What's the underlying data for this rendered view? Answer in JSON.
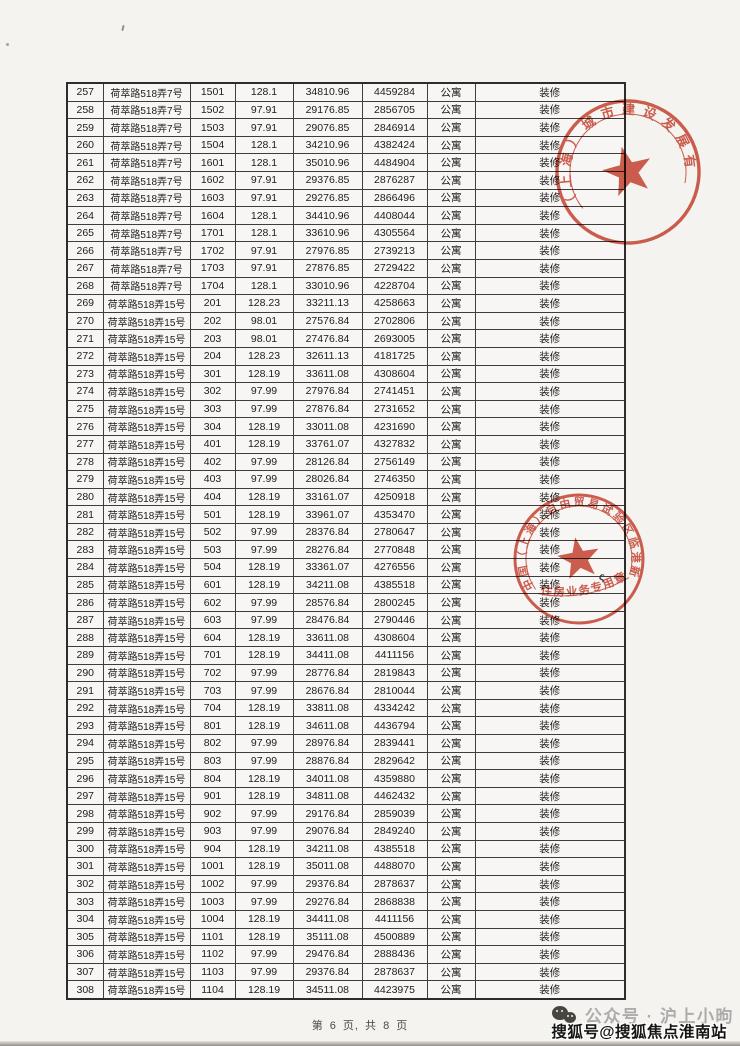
{
  "page": {
    "footer_text": "第 6 页, 共 8 页"
  },
  "table": {
    "rows": [
      [
        "257",
        "荷萃路518弄7号",
        "1501",
        "128.1",
        "34810.96",
        "4459284",
        "公寓",
        "装修"
      ],
      [
        "258",
        "荷萃路518弄7号",
        "1502",
        "97.91",
        "29176.85",
        "2856705",
        "公寓",
        "装修"
      ],
      [
        "259",
        "荷萃路518弄7号",
        "1503",
        "97.91",
        "29076.85",
        "2846914",
        "公寓",
        "装修"
      ],
      [
        "260",
        "荷萃路518弄7号",
        "1504",
        "128.1",
        "34210.96",
        "4382424",
        "公寓",
        "装修"
      ],
      [
        "261",
        "荷萃路518弄7号",
        "1601",
        "128.1",
        "35010.96",
        "4484904",
        "公寓",
        "装修"
      ],
      [
        "262",
        "荷萃路518弄7号",
        "1602",
        "97.91",
        "29376.85",
        "2876287",
        "公寓",
        "装修"
      ],
      [
        "263",
        "荷萃路518弄7号",
        "1603",
        "97.91",
        "29276.85",
        "2866496",
        "公寓",
        "装修"
      ],
      [
        "264",
        "荷萃路518弄7号",
        "1604",
        "128.1",
        "34410.96",
        "4408044",
        "公寓",
        "装修"
      ],
      [
        "265",
        "荷萃路518弄7号",
        "1701",
        "128.1",
        "33610.96",
        "4305564",
        "公寓",
        "装修"
      ],
      [
        "266",
        "荷萃路518弄7号",
        "1702",
        "97.91",
        "27976.85",
        "2739213",
        "公寓",
        "装修"
      ],
      [
        "267",
        "荷萃路518弄7号",
        "1703",
        "97.91",
        "27876.85",
        "2729422",
        "公寓",
        "装修"
      ],
      [
        "268",
        "荷萃路518弄7号",
        "1704",
        "128.1",
        "33010.96",
        "4228704",
        "公寓",
        "装修"
      ],
      [
        "269",
        "荷萃路518弄15号",
        "201",
        "128.23",
        "33211.13",
        "4258663",
        "公寓",
        "装修"
      ],
      [
        "270",
        "荷萃路518弄15号",
        "202",
        "98.01",
        "27576.84",
        "2702806",
        "公寓",
        "装修"
      ],
      [
        "271",
        "荷萃路518弄15号",
        "203",
        "98.01",
        "27476.84",
        "2693005",
        "公寓",
        "装修"
      ],
      [
        "272",
        "荷萃路518弄15号",
        "204",
        "128.23",
        "32611.13",
        "4181725",
        "公寓",
        "装修"
      ],
      [
        "273",
        "荷萃路518弄15号",
        "301",
        "128.19",
        "33611.08",
        "4308604",
        "公寓",
        "装修"
      ],
      [
        "274",
        "荷萃路518弄15号",
        "302",
        "97.99",
        "27976.84",
        "2741451",
        "公寓",
        "装修"
      ],
      [
        "275",
        "荷萃路518弄15号",
        "303",
        "97.99",
        "27876.84",
        "2731652",
        "公寓",
        "装修"
      ],
      [
        "276",
        "荷萃路518弄15号",
        "304",
        "128.19",
        "33011.08",
        "4231690",
        "公寓",
        "装修"
      ],
      [
        "277",
        "荷萃路518弄15号",
        "401",
        "128.19",
        "33761.07",
        "4327832",
        "公寓",
        "装修"
      ],
      [
        "278",
        "荷萃路518弄15号",
        "402",
        "97.99",
        "28126.84",
        "2756149",
        "公寓",
        "装修"
      ],
      [
        "279",
        "荷萃路518弄15号",
        "403",
        "97.99",
        "28026.84",
        "2746350",
        "公寓",
        "装修"
      ],
      [
        "280",
        "荷萃路518弄15号",
        "404",
        "128.19",
        "33161.07",
        "4250918",
        "公寓",
        "装修"
      ],
      [
        "281",
        "荷萃路518弄15号",
        "501",
        "128.19",
        "33961.07",
        "4353470",
        "公寓",
        "装修"
      ],
      [
        "282",
        "荷萃路518弄15号",
        "502",
        "97.99",
        "28376.84",
        "2780647",
        "公寓",
        "装修"
      ],
      [
        "283",
        "荷萃路518弄15号",
        "503",
        "97.99",
        "28276.84",
        "2770848",
        "公寓",
        "装修"
      ],
      [
        "284",
        "荷萃路518弄15号",
        "504",
        "128.19",
        "33361.07",
        "4276556",
        "公寓",
        "装修"
      ],
      [
        "285",
        "荷萃路518弄15号",
        "601",
        "128.19",
        "34211.08",
        "4385518",
        "公寓",
        "装修"
      ],
      [
        "286",
        "荷萃路518弄15号",
        "602",
        "97.99",
        "28576.84",
        "2800245",
        "公寓",
        "装修"
      ],
      [
        "287",
        "荷萃路518弄15号",
        "603",
        "97.99",
        "28476.84",
        "2790446",
        "公寓",
        "装修"
      ],
      [
        "288",
        "荷萃路518弄15号",
        "604",
        "128.19",
        "33611.08",
        "4308604",
        "公寓",
        "装修"
      ],
      [
        "289",
        "荷萃路518弄15号",
        "701",
        "128.19",
        "34411.08",
        "4411156",
        "公寓",
        "装修"
      ],
      [
        "290",
        "荷萃路518弄15号",
        "702",
        "97.99",
        "28776.84",
        "2819843",
        "公寓",
        "装修"
      ],
      [
        "291",
        "荷萃路518弄15号",
        "703",
        "97.99",
        "28676.84",
        "2810044",
        "公寓",
        "装修"
      ],
      [
        "292",
        "荷萃路518弄15号",
        "704",
        "128.19",
        "33811.08",
        "4334242",
        "公寓",
        "装修"
      ],
      [
        "293",
        "荷萃路518弄15号",
        "801",
        "128.19",
        "34611.08",
        "4436794",
        "公寓",
        "装修"
      ],
      [
        "294",
        "荷萃路518弄15号",
        "802",
        "97.99",
        "28976.84",
        "2839441",
        "公寓",
        "装修"
      ],
      [
        "295",
        "荷萃路518弄15号",
        "803",
        "97.99",
        "28876.84",
        "2829642",
        "公寓",
        "装修"
      ],
      [
        "296",
        "荷萃路518弄15号",
        "804",
        "128.19",
        "34011.08",
        "4359880",
        "公寓",
        "装修"
      ],
      [
        "297",
        "荷萃路518弄15号",
        "901",
        "128.19",
        "34811.08",
        "4462432",
        "公寓",
        "装修"
      ],
      [
        "298",
        "荷萃路518弄15号",
        "902",
        "97.99",
        "29176.84",
        "2859039",
        "公寓",
        "装修"
      ],
      [
        "299",
        "荷萃路518弄15号",
        "903",
        "97.99",
        "29076.84",
        "2849240",
        "公寓",
        "装修"
      ],
      [
        "300",
        "荷萃路518弄15号",
        "904",
        "128.19",
        "34211.08",
        "4385518",
        "公寓",
        "装修"
      ],
      [
        "301",
        "荷萃路518弄15号",
        "1001",
        "128.19",
        "35011.08",
        "4488070",
        "公寓",
        "装修"
      ],
      [
        "302",
        "荷萃路518弄15号",
        "1002",
        "97.99",
        "29376.84",
        "2878637",
        "公寓",
        "装修"
      ],
      [
        "303",
        "荷萃路518弄15号",
        "1003",
        "97.99",
        "29276.84",
        "2868838",
        "公寓",
        "装修"
      ],
      [
        "304",
        "荷萃路518弄15号",
        "1004",
        "128.19",
        "34411.08",
        "4411156",
        "公寓",
        "装修"
      ],
      [
        "305",
        "荷萃路518弄15号",
        "1101",
        "128.19",
        "35111.08",
        "4500889",
        "公寓",
        "装修"
      ],
      [
        "306",
        "荷萃路518弄15号",
        "1102",
        "97.99",
        "29476.84",
        "2888436",
        "公寓",
        "装修"
      ],
      [
        "307",
        "荷萃路518弄15号",
        "1103",
        "97.99",
        "29376.84",
        "2878637",
        "公寓",
        "装修"
      ],
      [
        "308",
        "荷萃路518弄15号",
        "1104",
        "128.19",
        "34511.08",
        "4423975",
        "公寓",
        "装修"
      ]
    ]
  },
  "seals": {
    "red_color": "#c9412f",
    "developer_seal": {
      "ring_text": "（上海）城市建设发展有限公司"
    },
    "authority_seal": {
      "ring_text": "中国（上海）自由贸易试验区临港新片区管委会",
      "inner_text": "住房业务专用章"
    }
  },
  "watermark": {
    "wechat_line": "公众号 · 沪上小昫",
    "sohu_line": "搜狐号@搜狐焦点淮南站"
  }
}
